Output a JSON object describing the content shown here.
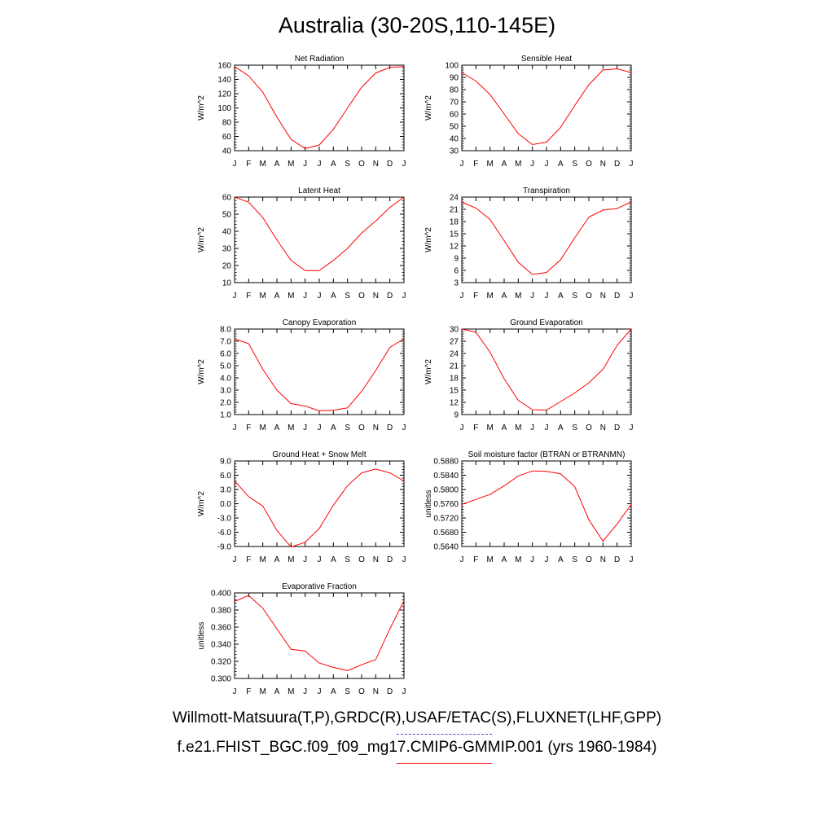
{
  "page": {
    "title": "Australia (30-20S,110-145E)",
    "legend_obs": "Willmott-Matsuura(T,P),GRDC(R),USAF/ETAC(S),FLUXNET(LHF,GPP)",
    "legend_model": "f.e21.FHIST_BGC.f09_f09_mg17.CMIP6-GMMIP.001 (yrs 1960-1984)",
    "obs_color": "#4444ee",
    "model_color": "#ff0000"
  },
  "chart_data": [
    {
      "type": "line",
      "title": "Net Radiation",
      "ylabel": "W/m^2",
      "categories": [
        "J",
        "F",
        "M",
        "A",
        "M",
        "J",
        "J",
        "A",
        "S",
        "O",
        "N",
        "D",
        "J"
      ],
      "yticks": [
        "40",
        "60",
        "80",
        "100",
        "120",
        "140",
        "160"
      ],
      "ylim": [
        40,
        160
      ],
      "series": [
        {
          "values": [
            158,
            145,
            122,
            87,
            56,
            43,
            48,
            70,
            100,
            129,
            149,
            157,
            158
          ]
        }
      ]
    },
    {
      "type": "line",
      "title": "Sensible Heat",
      "ylabel": "W/m^2",
      "categories": [
        "J",
        "F",
        "M",
        "A",
        "M",
        "J",
        "J",
        "A",
        "S",
        "O",
        "N",
        "D",
        "J"
      ],
      "yticks": [
        "30",
        "40",
        "50",
        "60",
        "70",
        "80",
        "90",
        "100"
      ],
      "ylim": [
        30,
        100
      ],
      "series": [
        {
          "values": [
            94,
            87,
            76,
            60,
            44,
            35,
            37,
            49,
            67,
            84,
            96,
            97,
            94
          ]
        }
      ]
    },
    {
      "type": "line",
      "title": "Latent Heat",
      "ylabel": "W/m^2",
      "categories": [
        "J",
        "F",
        "M",
        "A",
        "M",
        "J",
        "J",
        "A",
        "S",
        "O",
        "N",
        "D",
        "J"
      ],
      "yticks": [
        "10",
        "20",
        "30",
        "40",
        "50",
        "60"
      ],
      "ylim": [
        10,
        60
      ],
      "series": [
        {
          "values": [
            60,
            57,
            48,
            35,
            23,
            17,
            17,
            23,
            30,
            39,
            46,
            54,
            60
          ]
        }
      ]
    },
    {
      "type": "line",
      "title": "Transpiration",
      "ylabel": "W/m^2",
      "categories": [
        "J",
        "F",
        "M",
        "A",
        "M",
        "J",
        "J",
        "A",
        "S",
        "O",
        "N",
        "D",
        "J"
      ],
      "yticks": [
        "3",
        "6",
        "9",
        "12",
        "15",
        "18",
        "21",
        "24"
      ],
      "ylim": [
        3,
        24
      ],
      "series": [
        {
          "values": [
            22.8,
            21.3,
            18.5,
            13.3,
            8.0,
            5.0,
            5.5,
            8.6,
            14.0,
            19.1,
            20.8,
            21.2,
            22.8
          ]
        }
      ]
    },
    {
      "type": "line",
      "title": "Canopy Evaporation",
      "ylabel": "W/m^2",
      "categories": [
        "J",
        "F",
        "M",
        "A",
        "M",
        "J",
        "J",
        "A",
        "S",
        "O",
        "N",
        "D",
        "J"
      ],
      "yticks": [
        "1.0",
        "2.0",
        "3.0",
        "4.0",
        "5.0",
        "6.0",
        "7.0",
        "8.0"
      ],
      "ylim": [
        1,
        8
      ],
      "series": [
        {
          "values": [
            7.2,
            6.8,
            4.7,
            3.0,
            1.9,
            1.7,
            1.3,
            1.35,
            1.55,
            2.9,
            4.6,
            6.5,
            7.2
          ]
        }
      ]
    },
    {
      "type": "line",
      "title": "Ground Evaporation",
      "ylabel": "W/m^2",
      "categories": [
        "J",
        "F",
        "M",
        "A",
        "M",
        "J",
        "J",
        "A",
        "S",
        "O",
        "N",
        "D",
        "J"
      ],
      "yticks": [
        "9",
        "12",
        "15",
        "18",
        "21",
        "24",
        "27",
        "30"
      ],
      "ylim": [
        9,
        30
      ],
      "series": [
        {
          "values": [
            30,
            29.2,
            24.3,
            17.8,
            12.5,
            10.2,
            10.1,
            12.2,
            14.3,
            16.8,
            20.1,
            26.0,
            30.0
          ]
        }
      ]
    },
    {
      "type": "line",
      "title": "Ground Heat + Snow Melt",
      "ylabel": "W/m^2",
      "categories": [
        "J",
        "F",
        "M",
        "A",
        "M",
        "J",
        "J",
        "A",
        "S",
        "O",
        "N",
        "D",
        "J"
      ],
      "yticks": [
        "-9.0",
        "-6.0",
        "-3.0",
        "0.0",
        "3.0",
        "6.0",
        "9.0"
      ],
      "ylim": [
        -9,
        9
      ],
      "series": [
        {
          "values": [
            4.8,
            1.5,
            -0.5,
            -5.6,
            -9.1,
            -8.1,
            -5.2,
            -0.3,
            3.8,
            6.5,
            7.3,
            6.5,
            4.8
          ]
        }
      ]
    },
    {
      "type": "line",
      "title": "Soil moisture factor (BTRAN or BTRANMN)",
      "ylabel": "unitless",
      "categories": [
        "J",
        "F",
        "M",
        "A",
        "M",
        "J",
        "J",
        "A",
        "S",
        "O",
        "N",
        "D",
        "J"
      ],
      "yticks": [
        "0.5640",
        "0.5680",
        "0.5720",
        "0.5760",
        "0.5800",
        "0.5840",
        "0.5880"
      ],
      "ylim": [
        0.564,
        0.588
      ],
      "series": [
        {
          "values": [
            0.5758,
            0.5772,
            0.5786,
            0.581,
            0.5838,
            0.5852,
            0.5851,
            0.5844,
            0.5808,
            0.5715,
            0.5655,
            0.5703,
            0.5758
          ]
        }
      ]
    },
    {
      "type": "line",
      "title": "Evaporative Fraction",
      "ylabel": "unitless",
      "categories": [
        "J",
        "F",
        "M",
        "A",
        "M",
        "J",
        "J",
        "A",
        "S",
        "O",
        "N",
        "D",
        "J"
      ],
      "yticks": [
        "0.300",
        "0.320",
        "0.340",
        "0.360",
        "0.380",
        "0.400"
      ],
      "ylim": [
        0.3,
        0.4
      ],
      "series": [
        {
          "values": [
            0.39,
            0.397,
            0.382,
            0.358,
            0.334,
            0.332,
            0.318,
            0.313,
            0.309,
            0.316,
            0.322,
            0.358,
            0.391
          ]
        }
      ]
    }
  ]
}
